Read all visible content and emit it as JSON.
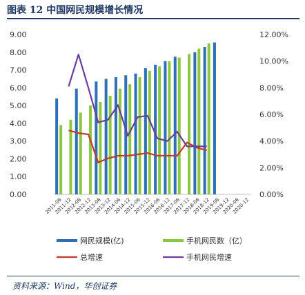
{
  "figure": {
    "title": "图表 12 中国网民规模增长情况",
    "source": "资料来源：Wind，华创证券"
  },
  "chart_data": {
    "type": "bar",
    "categories": [
      "2011-06",
      "2011-12",
      "2012-06",
      "2012-12",
      "2013-06",
      "2013-12",
      "2014-06",
      "2014-12",
      "2015-06",
      "2015-12",
      "2016-06",
      "2016-12",
      "2017-06",
      "2017-12",
      "2018-06",
      "2018-12",
      "2019-06",
      "2019-12",
      "2020-06",
      "2020-12"
    ],
    "series": [
      {
        "name": "网民规模(亿)",
        "axis": "left",
        "kind": "bar",
        "color": "#2e6fb5",
        "values": [
          5.4,
          null,
          5.95,
          null,
          6.35,
          6.5,
          6.6,
          6.7,
          6.8,
          7.1,
          7.3,
          7.5,
          7.75,
          null,
          8.0,
          8.3,
          8.55,
          null,
          null,
          null
        ]
      },
      {
        "name": "手机网民数（亿）",
        "axis": "left",
        "kind": "bar",
        "color": "#8dc63f",
        "values": [
          3.9,
          4.2,
          4.6,
          5.0,
          5.2,
          5.55,
          5.95,
          6.2,
          6.6,
          6.95,
          7.2,
          7.5,
          7.7,
          7.9,
          8.2,
          8.5,
          null,
          null,
          null,
          null
        ]
      },
      {
        "name": "总增速",
        "axis": "right",
        "kind": "line",
        "color": "#c0392b",
        "values": [
          null,
          4.8,
          4.6,
          4.5,
          2.4,
          2.7,
          2.9,
          2.9,
          3.0,
          3.1,
          2.9,
          2.9,
          2.9,
          3.9,
          3.5,
          3.3,
          null,
          null,
          null,
          null
        ]
      },
      {
        "name": "手机网民增速",
        "axis": "right",
        "kind": "line",
        "color": "#6a3d9a",
        "values": [
          null,
          8.1,
          10.5,
          8.0,
          5.4,
          5.6,
          6.7,
          4.4,
          5.8,
          5.9,
          4.2,
          4.0,
          4.7,
          3.6,
          3.6,
          3.6,
          null,
          null,
          null,
          null
        ]
      }
    ],
    "yleft": {
      "min": 0,
      "max": 9,
      "step": 1,
      "labels": [
        "0.00",
        "1.00",
        "2.00",
        "3.00",
        "4.00",
        "5.00",
        "6.00",
        "7.00",
        "8.00",
        "9.00"
      ]
    },
    "yright": {
      "min": 0,
      "max": 12,
      "step": 2,
      "labels": [
        "0.00%",
        "2.00%",
        "4.00%",
        "6.00%",
        "8.00%",
        "10.00%",
        "12.00%"
      ]
    },
    "grid": false,
    "legend_position": "bottom"
  }
}
